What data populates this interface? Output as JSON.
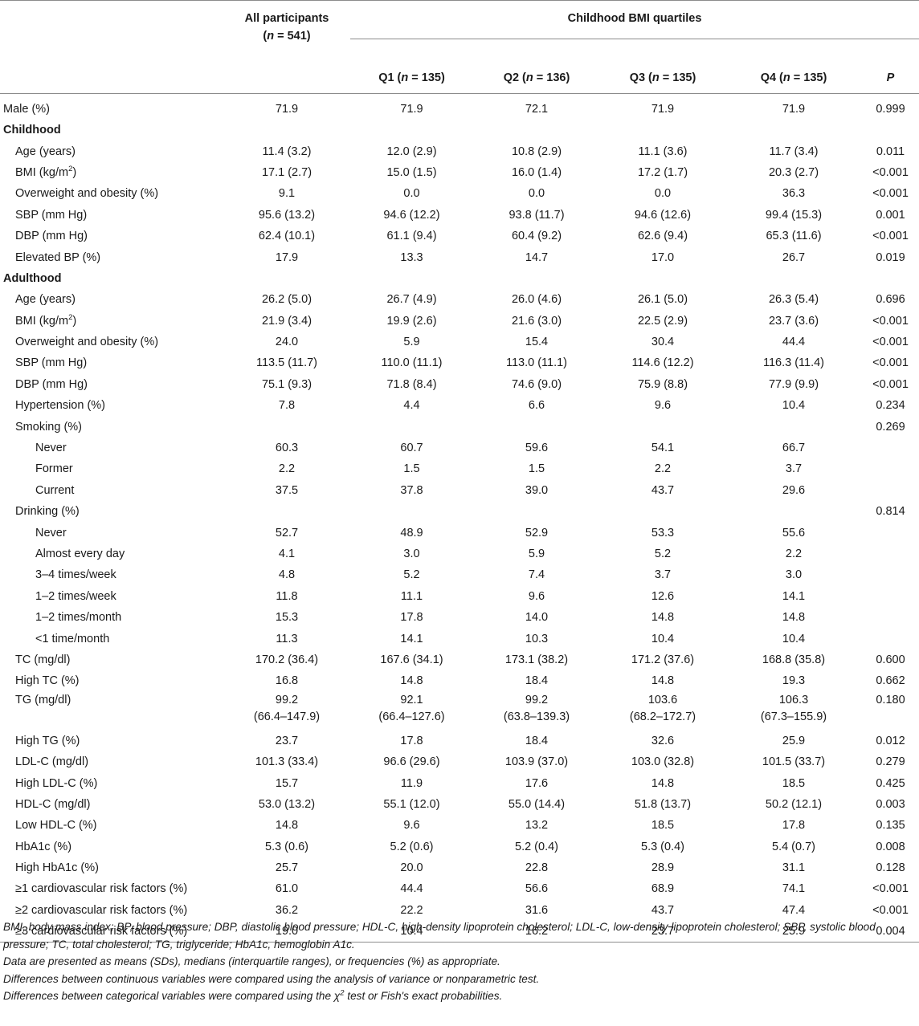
{
  "header": {
    "all_participants": "All participants",
    "all_n": "(n = 541)",
    "group": "Childhood BMI quartiles",
    "quartiles": [
      "Q1 (n = 135)",
      "Q2 (n = 136)",
      "Q3 (n = 135)",
      "Q4 (n = 135)"
    ],
    "p": "P"
  },
  "rows": [
    {
      "label": "Male (%)",
      "indent": 0,
      "values": [
        "71.9",
        "71.9",
        "72.1",
        "71.9",
        "71.9",
        "0.999"
      ]
    },
    {
      "label": "Childhood",
      "indent": 0,
      "section": true,
      "values": [
        "",
        "",
        "",
        "",
        "",
        ""
      ]
    },
    {
      "label": "Age (years)",
      "indent": 1,
      "values": [
        "11.4 (3.2)",
        "12.0 (2.9)",
        "10.8 (2.9)",
        "11.1 (3.6)",
        "11.7 (3.4)",
        "0.011"
      ]
    },
    {
      "label": "BMI (kg/m",
      "sup": "2",
      "label_end": ")",
      "indent": 1,
      "values": [
        "17.1 (2.7)",
        "15.0 (1.5)",
        "16.0 (1.4)",
        "17.2 (1.7)",
        "20.3 (2.7)",
        "<0.001"
      ]
    },
    {
      "label": "Overweight and obesity (%)",
      "indent": 1,
      "values": [
        "9.1",
        "0.0",
        "0.0",
        "0.0",
        "36.3",
        "<0.001"
      ]
    },
    {
      "label": "SBP (mm Hg)",
      "indent": 1,
      "values": [
        "95.6 (13.2)",
        "94.6 (12.2)",
        "93.8 (11.7)",
        "94.6 (12.6)",
        "99.4 (15.3)",
        "0.001"
      ]
    },
    {
      "label": "DBP (mm Hg)",
      "indent": 1,
      "values": [
        "62.4 (10.1)",
        "61.1 (9.4)",
        "60.4 (9.2)",
        "62.6 (9.4)",
        "65.3 (11.6)",
        "<0.001"
      ]
    },
    {
      "label": "Elevated BP (%)",
      "indent": 1,
      "values": [
        "17.9",
        "13.3",
        "14.7",
        "17.0",
        "26.7",
        "0.019"
      ]
    },
    {
      "label": "Adulthood",
      "indent": 0,
      "section": true,
      "values": [
        "",
        "",
        "",
        "",
        "",
        ""
      ]
    },
    {
      "label": "Age (years)",
      "indent": 1,
      "values": [
        "26.2 (5.0)",
        "26.7 (4.9)",
        "26.0 (4.6)",
        "26.1 (5.0)",
        "26.3 (5.4)",
        "0.696"
      ]
    },
    {
      "label": "BMI (kg/m",
      "sup": "2",
      "label_end": ")",
      "indent": 1,
      "values": [
        "21.9 (3.4)",
        "19.9 (2.6)",
        "21.6 (3.0)",
        "22.5 (2.9)",
        "23.7 (3.6)",
        "<0.001"
      ]
    },
    {
      "label": "Overweight and obesity (%)",
      "indent": 1,
      "values": [
        "24.0",
        "5.9",
        "15.4",
        "30.4",
        "44.4",
        "<0.001"
      ]
    },
    {
      "label": "SBP (mm Hg)",
      "indent": 1,
      "values": [
        "113.5 (11.7)",
        "110.0 (11.1)",
        "113.0 (11.1)",
        "114.6 (12.2)",
        "116.3 (11.4)",
        "<0.001"
      ]
    },
    {
      "label": "DBP (mm Hg)",
      "indent": 1,
      "values": [
        "75.1 (9.3)",
        "71.8 (8.4)",
        "74.6 (9.0)",
        "75.9 (8.8)",
        "77.9 (9.9)",
        "<0.001"
      ]
    },
    {
      "label": "Hypertension (%)",
      "indent": 1,
      "values": [
        "7.8",
        "4.4",
        "6.6",
        "9.6",
        "10.4",
        "0.234"
      ]
    },
    {
      "label": "Smoking (%)",
      "indent": 1,
      "values": [
        "",
        "",
        "",
        "",
        "",
        "0.269"
      ]
    },
    {
      "label": "Never",
      "indent": 2,
      "values": [
        "60.3",
        "60.7",
        "59.6",
        "54.1",
        "66.7",
        ""
      ]
    },
    {
      "label": "Former",
      "indent": 2,
      "values": [
        "2.2",
        "1.5",
        "1.5",
        "2.2",
        "3.7",
        ""
      ]
    },
    {
      "label": "Current",
      "indent": 2,
      "values": [
        "37.5",
        "37.8",
        "39.0",
        "43.7",
        "29.6",
        ""
      ]
    },
    {
      "label": "Drinking (%)",
      "indent": 1,
      "values": [
        "",
        "",
        "",
        "",
        "",
        "0.814"
      ]
    },
    {
      "label": "Never",
      "indent": 2,
      "values": [
        "52.7",
        "48.9",
        "52.9",
        "53.3",
        "55.6",
        ""
      ]
    },
    {
      "label": "Almost every day",
      "indent": 2,
      "values": [
        "4.1",
        "3.0",
        "5.9",
        "5.2",
        "2.2",
        ""
      ]
    },
    {
      "label": "3–4 times/week",
      "indent": 2,
      "values": [
        "4.8",
        "5.2",
        "7.4",
        "3.7",
        "3.0",
        ""
      ]
    },
    {
      "label": "1–2 times/week",
      "indent": 2,
      "values": [
        "11.8",
        "11.1",
        "9.6",
        "12.6",
        "14.1",
        ""
      ]
    },
    {
      "label": "1–2 times/month",
      "indent": 2,
      "values": [
        "15.3",
        "17.8",
        "14.0",
        "14.8",
        "14.8",
        ""
      ]
    },
    {
      "label": "<1 time/month",
      "indent": 2,
      "values": [
        "11.3",
        "14.1",
        "10.3",
        "10.4",
        "10.4",
        ""
      ]
    },
    {
      "label": "TC (mg/dl)",
      "indent": 1,
      "values": [
        "170.2 (36.4)",
        "167.6 (34.1)",
        "173.1 (38.2)",
        "171.2 (37.6)",
        "168.8 (35.8)",
        "0.600"
      ]
    },
    {
      "label": "High TC (%)",
      "indent": 1,
      "values": [
        "16.8",
        "14.8",
        "18.4",
        "14.8",
        "19.3",
        "0.662"
      ]
    },
    {
      "label": "TG (mg/dl)",
      "indent": 1,
      "tall": true,
      "values": [
        "99.2",
        "92.1",
        "99.2",
        "103.6",
        "106.3",
        "0.180"
      ],
      "values2": [
        "(66.4–147.9)",
        "(66.4–127.6)",
        "(63.8–139.3)",
        "(68.2–172.7)",
        "(67.3–155.9)",
        ""
      ]
    },
    {
      "label": "High TG (%)",
      "indent": 1,
      "values": [
        "23.7",
        "17.8",
        "18.4",
        "32.6",
        "25.9",
        "0.012"
      ]
    },
    {
      "label": "LDL-C (mg/dl)",
      "indent": 1,
      "values": [
        "101.3 (33.4)",
        "96.6 (29.6)",
        "103.9 (37.0)",
        "103.0 (32.8)",
        "101.5 (33.7)",
        "0.279"
      ]
    },
    {
      "label": "High LDL-C (%)",
      "indent": 1,
      "values": [
        "15.7",
        "11.9",
        "17.6",
        "14.8",
        "18.5",
        "0.425"
      ]
    },
    {
      "label": "HDL-C (mg/dl)",
      "indent": 1,
      "values": [
        "53.0 (13.2)",
        "55.1 (12.0)",
        "55.0 (14.4)",
        "51.8 (13.7)",
        "50.2 (12.1)",
        "0.003"
      ]
    },
    {
      "label": "Low HDL-C (%)",
      "indent": 1,
      "values": [
        "14.8",
        "9.6",
        "13.2",
        "18.5",
        "17.8",
        "0.135"
      ]
    },
    {
      "label": "HbA1c (%)",
      "indent": 1,
      "values": [
        "5.3 (0.6)",
        "5.2 (0.6)",
        "5.2 (0.4)",
        "5.3 (0.4)",
        "5.4 (0.7)",
        "0.008"
      ]
    },
    {
      "label": "High HbA1c (%)",
      "indent": 1,
      "values": [
        "25.7",
        "20.0",
        "22.8",
        "28.9",
        "31.1",
        "0.128"
      ]
    },
    {
      "label": "≥1 cardiovascular risk factors (%)",
      "indent": 1,
      "values": [
        "61.0",
        "44.4",
        "56.6",
        "68.9",
        "74.1",
        "<0.001"
      ]
    },
    {
      "label": "≥2 cardiovascular risk factors (%)",
      "indent": 1,
      "values": [
        "36.2",
        "22.2",
        "31.6",
        "43.7",
        "47.4",
        "<0.001"
      ]
    },
    {
      "label": "≥3 cardiovascular risk factors (%)",
      "indent": 1,
      "values": [
        "19.0",
        "10.4",
        "16.2",
        "23.7",
        "25.9",
        "0.004"
      ]
    }
  ],
  "notes": {
    "abbrev": "BMI, body mass index; BP, blood pressure; DBP, diastolic blood pressure; HDL-C, high-density lipoprotein cholesterol; LDL-C, low-density lipoprotein cholesterol; SBP, systolic blood pressure; TC, total cholesterol; TG, triglyceride; HbA1c, hemoglobin A1c.",
    "data_presented": "Data are presented as means (SDs), medians (interquartile ranges), or frequencies (%) as appropriate.",
    "continuous": "Differences between continuous variables were compared using the analysis of variance or nonparametric test.",
    "categorical_pre": "Differences between categorical variables were compared using the χ",
    "categorical_sup": "2",
    "categorical_post": " test or Fish's exact probabilities."
  }
}
